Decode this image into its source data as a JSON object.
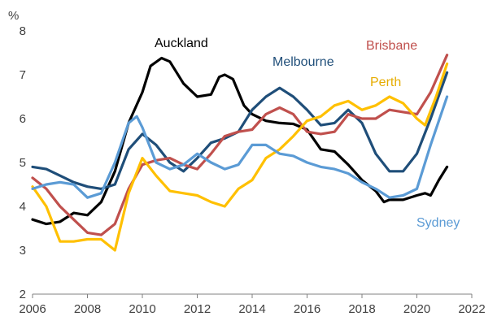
{
  "chart_data": {
    "type": "line",
    "title": "",
    "ylabel": "%",
    "xlabel": "",
    "xlim": [
      2006,
      2022
    ],
    "ylim": [
      2,
      8
    ],
    "xticks": [
      "2006",
      "2008",
      "2010",
      "2012",
      "2014",
      "2016",
      "2018",
      "2020",
      "2022"
    ],
    "yticks": [
      "2",
      "3",
      "4",
      "5",
      "6",
      "7",
      "8"
    ],
    "grid": false,
    "legend": "inline labels",
    "series": [
      {
        "name": "Auckland",
        "color": "#000000",
        "x": [
          2006,
          2006.5,
          2007,
          2007.5,
          2008,
          2008.5,
          2009,
          2009.5,
          2010,
          2010.3,
          2010.7,
          2011,
          2011.5,
          2012,
          2012.5,
          2012.8,
          2013,
          2013.3,
          2013.7,
          2014,
          2014.5,
          2015,
          2015.5,
          2016,
          2016.5,
          2017,
          2017.5,
          2018,
          2018.5,
          2018.8,
          2019,
          2019.5,
          2020,
          2020.3,
          2020.5,
          2020.8,
          2021.1
        ],
        "y": [
          3.7,
          3.6,
          3.65,
          3.85,
          3.8,
          4.1,
          4.8,
          5.9,
          6.6,
          7.2,
          7.38,
          7.3,
          6.8,
          6.5,
          6.55,
          6.95,
          7.0,
          6.9,
          6.3,
          6.1,
          5.95,
          5.9,
          5.88,
          5.75,
          5.3,
          5.25,
          4.95,
          4.6,
          4.35,
          4.1,
          4.15,
          4.15,
          4.25,
          4.3,
          4.25,
          4.6,
          4.9
        ]
      },
      {
        "name": "Melbourne",
        "color": "#1F4E79",
        "x": [
          2006,
          2006.5,
          2007,
          2007.5,
          2008,
          2008.5,
          2009,
          2009.5,
          2010,
          2010.5,
          2011,
          2011.5,
          2012,
          2012.5,
          2013,
          2013.5,
          2014,
          2014.5,
          2015,
          2015.5,
          2016,
          2016.5,
          2017,
          2017.5,
          2018,
          2018.5,
          2019,
          2019.5,
          2020,
          2020.5,
          2021.1
        ],
        "y": [
          4.9,
          4.85,
          4.7,
          4.55,
          4.45,
          4.4,
          4.5,
          5.3,
          5.65,
          5.4,
          5.0,
          4.8,
          5.1,
          5.45,
          5.55,
          5.7,
          6.2,
          6.5,
          6.7,
          6.5,
          6.2,
          5.85,
          5.9,
          6.2,
          5.9,
          5.2,
          4.8,
          4.8,
          5.2,
          6.0,
          7.05
        ]
      },
      {
        "name": "Brisbane",
        "color": "#C0504D",
        "x": [
          2006,
          2006.5,
          2007,
          2007.5,
          2008,
          2008.5,
          2009,
          2009.5,
          2010,
          2010.5,
          2011,
          2011.5,
          2012,
          2012.5,
          2013,
          2013.5,
          2014,
          2014.5,
          2015,
          2015.5,
          2016,
          2016.5,
          2017,
          2017.5,
          2018,
          2018.5,
          2019,
          2019.5,
          2020,
          2020.5,
          2021.1
        ],
        "y": [
          4.65,
          4.4,
          4.0,
          3.7,
          3.4,
          3.35,
          3.6,
          4.4,
          4.95,
          5.05,
          5.1,
          4.95,
          4.85,
          5.2,
          5.6,
          5.7,
          5.75,
          6.1,
          6.25,
          6.1,
          5.7,
          5.65,
          5.7,
          6.1,
          6.0,
          6.0,
          6.2,
          6.15,
          6.1,
          6.6,
          7.45
        ]
      },
      {
        "name": "Perth",
        "color": "#FFC000",
        "x": [
          2006,
          2006.5,
          2007,
          2007.5,
          2008,
          2008.5,
          2009,
          2009.5,
          2010,
          2010.5,
          2011,
          2011.5,
          2012,
          2012.5,
          2013,
          2013.5,
          2014,
          2014.5,
          2015,
          2015.5,
          2016,
          2016.5,
          2017,
          2017.5,
          2018,
          2018.5,
          2019,
          2019.5,
          2020,
          2020.3,
          2020.7,
          2021.1
        ],
        "y": [
          4.45,
          4.0,
          3.2,
          3.2,
          3.25,
          3.25,
          3.0,
          4.3,
          5.1,
          4.7,
          4.35,
          4.3,
          4.25,
          4.1,
          4.0,
          4.4,
          4.6,
          5.1,
          5.3,
          5.6,
          5.95,
          6.05,
          6.3,
          6.4,
          6.2,
          6.3,
          6.5,
          6.35,
          6.0,
          5.85,
          6.5,
          7.25
        ]
      },
      {
        "name": "Sydney",
        "color": "#5B9BD5",
        "x": [
          2006,
          2006.5,
          2007,
          2007.5,
          2008,
          2008.5,
          2009,
          2009.5,
          2009.8,
          2010,
          2010.5,
          2011,
          2011.5,
          2012,
          2012.5,
          2013,
          2013.5,
          2014,
          2014.5,
          2015,
          2015.5,
          2016,
          2016.5,
          2017,
          2017.5,
          2018,
          2018.5,
          2019,
          2019.5,
          2020,
          2020.5,
          2021.1
        ],
        "y": [
          4.4,
          4.5,
          4.55,
          4.5,
          4.2,
          4.3,
          5.0,
          5.9,
          6.05,
          5.8,
          5.0,
          4.85,
          4.95,
          5.2,
          5.0,
          4.85,
          4.95,
          5.4,
          5.4,
          5.2,
          5.15,
          5.0,
          4.9,
          4.85,
          4.75,
          4.55,
          4.4,
          4.2,
          4.25,
          4.4,
          5.4,
          6.5
        ]
      }
    ]
  }
}
